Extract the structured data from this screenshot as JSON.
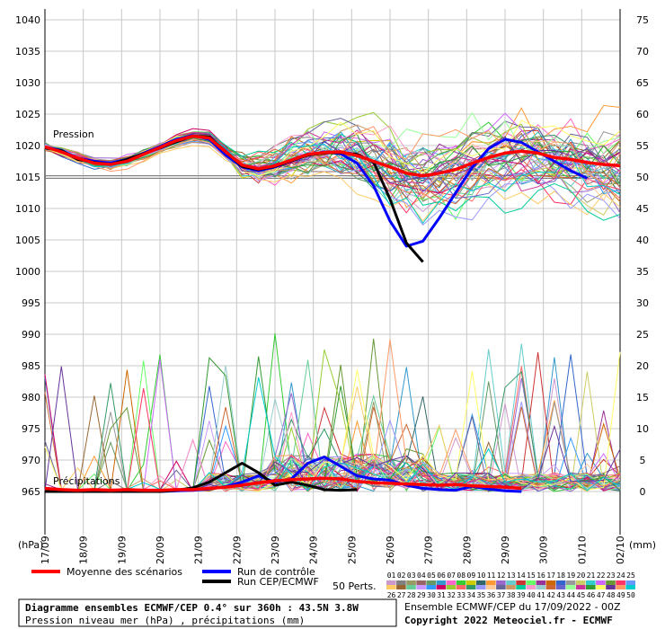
{
  "chart_data": {
    "type": "line",
    "left_axis_unit": "(hPa)",
    "right_axis_unit": "(mm)",
    "left_ticks": [
      1040,
      1035,
      1030,
      1025,
      1020,
      1015,
      1010,
      1005,
      1000,
      995,
      990,
      985,
      980,
      975,
      970,
      965
    ],
    "right_ticks": [
      75,
      70,
      65,
      60,
      55,
      50,
      45,
      40,
      35,
      30,
      25,
      20,
      15,
      10,
      5,
      0
    ],
    "x_labels": [
      "17/09",
      "18/09",
      "19/09",
      "20/09",
      "21/09",
      "22/09",
      "23/09",
      "24/09",
      "25/09",
      "26/09",
      "27/09",
      "28/09",
      "29/09",
      "30/09",
      "01/10",
      "02/10"
    ],
    "grid": true,
    "pressure_label": "Pression",
    "precip_label": "Précipitations",
    "series": [
      {
        "name": "Moyenne des scénarios",
        "color": "#ff0000",
        "pressure": [
          1019.8,
          1019,
          1018,
          1017.2,
          1017,
          1017.5,
          1018.6,
          1019.7,
          1020.8,
          1021.5,
          1021.2,
          1019,
          1016.9,
          1016.3,
          1016.8,
          1017.7,
          1018.6,
          1018.9,
          1019,
          1018.4,
          1017.5,
          1016.6,
          1015.6,
          1015.2,
          1015.6,
          1016.2,
          1017.2,
          1018.1,
          1018.8,
          1019.1,
          1018.8,
          1018.1,
          1017.8,
          1017.3,
          1017,
          1016.8
        ],
        "precip": [
          0.5,
          0.3,
          0.2,
          0.3,
          0.2,
          0.3,
          0.2,
          0.2,
          0.3,
          0.3,
          0.5,
          0.7,
          1,
          1.4,
          1.7,
          1.9,
          2,
          2.1,
          2,
          1.6,
          1.4,
          1.3,
          1.2,
          1.1,
          1,
          1.1,
          0.9,
          0.8,
          0.7,
          0.5
        ]
      },
      {
        "name": "Run de contrôle",
        "color": "#0000ff",
        "pressure": [
          1019.8,
          1019.2,
          1018,
          1017.5,
          1017.2,
          1017.8,
          1018.8,
          1019.9,
          1021,
          1021.6,
          1021,
          1018.5,
          1016.6,
          1016,
          1016.6,
          1017.6,
          1018.5,
          1019,
          1018.7,
          1017.2,
          1013.6,
          1008,
          1004,
          1004.8,
          1008.5,
          1012.5,
          1016.5,
          1019.5,
          1021,
          1020.5,
          1019,
          1017.5,
          1016,
          1014.8
        ],
        "precip": [
          0,
          0,
          0,
          0,
          0,
          0,
          0,
          0,
          0.1,
          0.2,
          0.4,
          0.8,
          1.5,
          2.5,
          1.5,
          2,
          4.5,
          5.5,
          4,
          2.5,
          2,
          1.8,
          1,
          0.5,
          0.3,
          0.2,
          0.8,
          0.4,
          0.1,
          0
        ]
      },
      {
        "name": "Run CEP/ECMWF",
        "color": "#000000",
        "pressure": [
          1019.6,
          1019.2,
          1017.8,
          1017.3,
          1017,
          1017.8,
          1018.7,
          1019.6,
          1020.6,
          1021.5,
          1021.4,
          1019,
          1016.7,
          1016.2,
          1016.7,
          1017.6,
          1018.5,
          1018.8,
          1018.9,
          1018.6,
          1017.4,
          1011.5,
          1004.5,
          1001.5
        ],
        "precip": [
          0,
          0,
          0,
          0,
          0,
          0,
          0,
          0,
          0.2,
          0.6,
          1.5,
          3,
          4.5,
          3,
          1,
          1.5,
          1,
          0.3,
          0.2,
          0.3
        ]
      }
    ],
    "members_label": "50 Perts.",
    "member_numbers_row1": [
      "01",
      "02",
      "03",
      "04",
      "05",
      "06",
      "07",
      "08",
      "09",
      "10",
      "11",
      "12",
      "13",
      "14",
      "15",
      "16",
      "17",
      "18",
      "19",
      "20",
      "21",
      "22",
      "23",
      "24",
      "25"
    ],
    "member_numbers_row2": [
      "26",
      "27",
      "28",
      "29",
      "30",
      "31",
      "32",
      "33",
      "34",
      "35",
      "36",
      "37",
      "38",
      "39",
      "40",
      "41",
      "42",
      "43",
      "44",
      "45",
      "46",
      "47",
      "48",
      "49",
      "50"
    ],
    "member_colors": [
      "#cc99cc",
      "#808080",
      "#999966",
      "#996666",
      "#669966",
      "#3399cc",
      "#ff66cc",
      "#33cc33",
      "#cccc00",
      "#336666",
      "#ff9933",
      "#9966cc",
      "#66cccc",
      "#cc3333",
      "#66ff66",
      "#993399",
      "#cc6600",
      "#3366cc",
      "#999999",
      "#cccc66",
      "#33cccc",
      "#cc66ff",
      "#669933",
      "#ff3366",
      "#6699ff",
      "#ffcc66",
      "#996633",
      "#66cc99",
      "#cc99ff",
      "#3399ff",
      "#cc0066",
      "#99cc33",
      "#ff6666",
      "#339966",
      "#9999ff",
      "#ffcc99",
      "#666699",
      "#cc9966",
      "#00cc99",
      "#ff99cc",
      "#99cccc",
      "#cc6633",
      "#6666cc",
      "#99ff99",
      "#cc3399",
      "#339933",
      "#ffff66",
      "#663399",
      "#ff9966",
      "#00cccc"
    ]
  },
  "footer": {
    "title": "Diagramme ensembles ECMWF/CEP 0.4° sur 360h : 43.5N 3.8W",
    "subtitle": "Pression niveau mer (hPa) , précipitations (mm)",
    "run_info": "Ensemble ECMWF/CEP du 17/09/2022 - 00Z",
    "copyright": "Copyright 2022 Meteociel.fr - ECMWF"
  }
}
